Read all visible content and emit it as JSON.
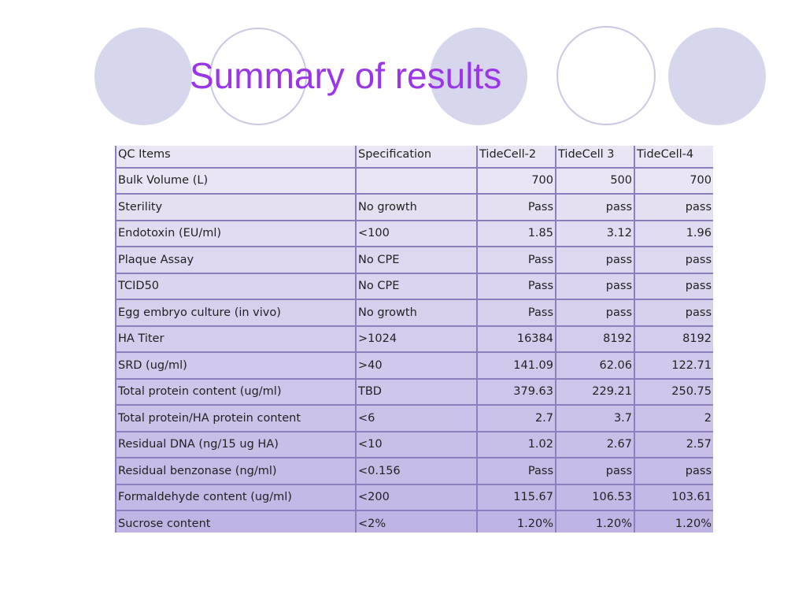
{
  "slide": {
    "title": "Summary of results"
  },
  "colors": {
    "title": "#9b35e8",
    "circle_fill": "#d6d6ec",
    "circle_outline": "#c9c9e6",
    "table_border": "#8b7fbe"
  },
  "table": {
    "headers": [
      "QC Items",
      "Specification",
      "TideCell-2",
      "TideCell 3",
      "TideCell-4"
    ],
    "rows": [
      [
        "Bulk Volume (L)",
        "",
        "700",
        "500",
        "700"
      ],
      [
        "Sterility",
        "No growth",
        "Pass",
        "pass",
        "pass"
      ],
      [
        "Endotoxin (EU/ml)",
        "<100",
        "1.85",
        "3.12",
        "1.96"
      ],
      [
        "Plaque Assay",
        "No CPE",
        "Pass",
        "pass",
        "pass"
      ],
      [
        "TCID50",
        "No CPE",
        "Pass",
        "pass",
        "pass"
      ],
      [
        "Egg embryo culture (in vivo)",
        "No growth",
        "Pass",
        "pass",
        "pass"
      ],
      [
        "HA Titer",
        ">1024",
        "16384",
        "8192",
        "8192"
      ],
      [
        "SRD (ug/ml)",
        ">40",
        "141.09",
        "62.06",
        "122.71"
      ],
      [
        "Total protein content (ug/ml)",
        "TBD",
        "379.63",
        "229.21",
        "250.75"
      ],
      [
        "Total protein/HA protein content",
        "<6",
        "2.7",
        "3.7",
        "2"
      ],
      [
        "Residual DNA (ng/15 ug HA)",
        "<10",
        "1.02",
        "2.67",
        "2.57"
      ],
      [
        "Residual benzonase (ng/ml)",
        "<0.156",
        "Pass",
        "pass",
        "pass"
      ],
      [
        "Formaldehyde content (ug/ml)",
        "<200",
        "115.67",
        "106.53",
        "103.61"
      ],
      [
        "Sucrose content",
        "<2%",
        "1.20%",
        "1.20%",
        "1.20%"
      ]
    ]
  }
}
